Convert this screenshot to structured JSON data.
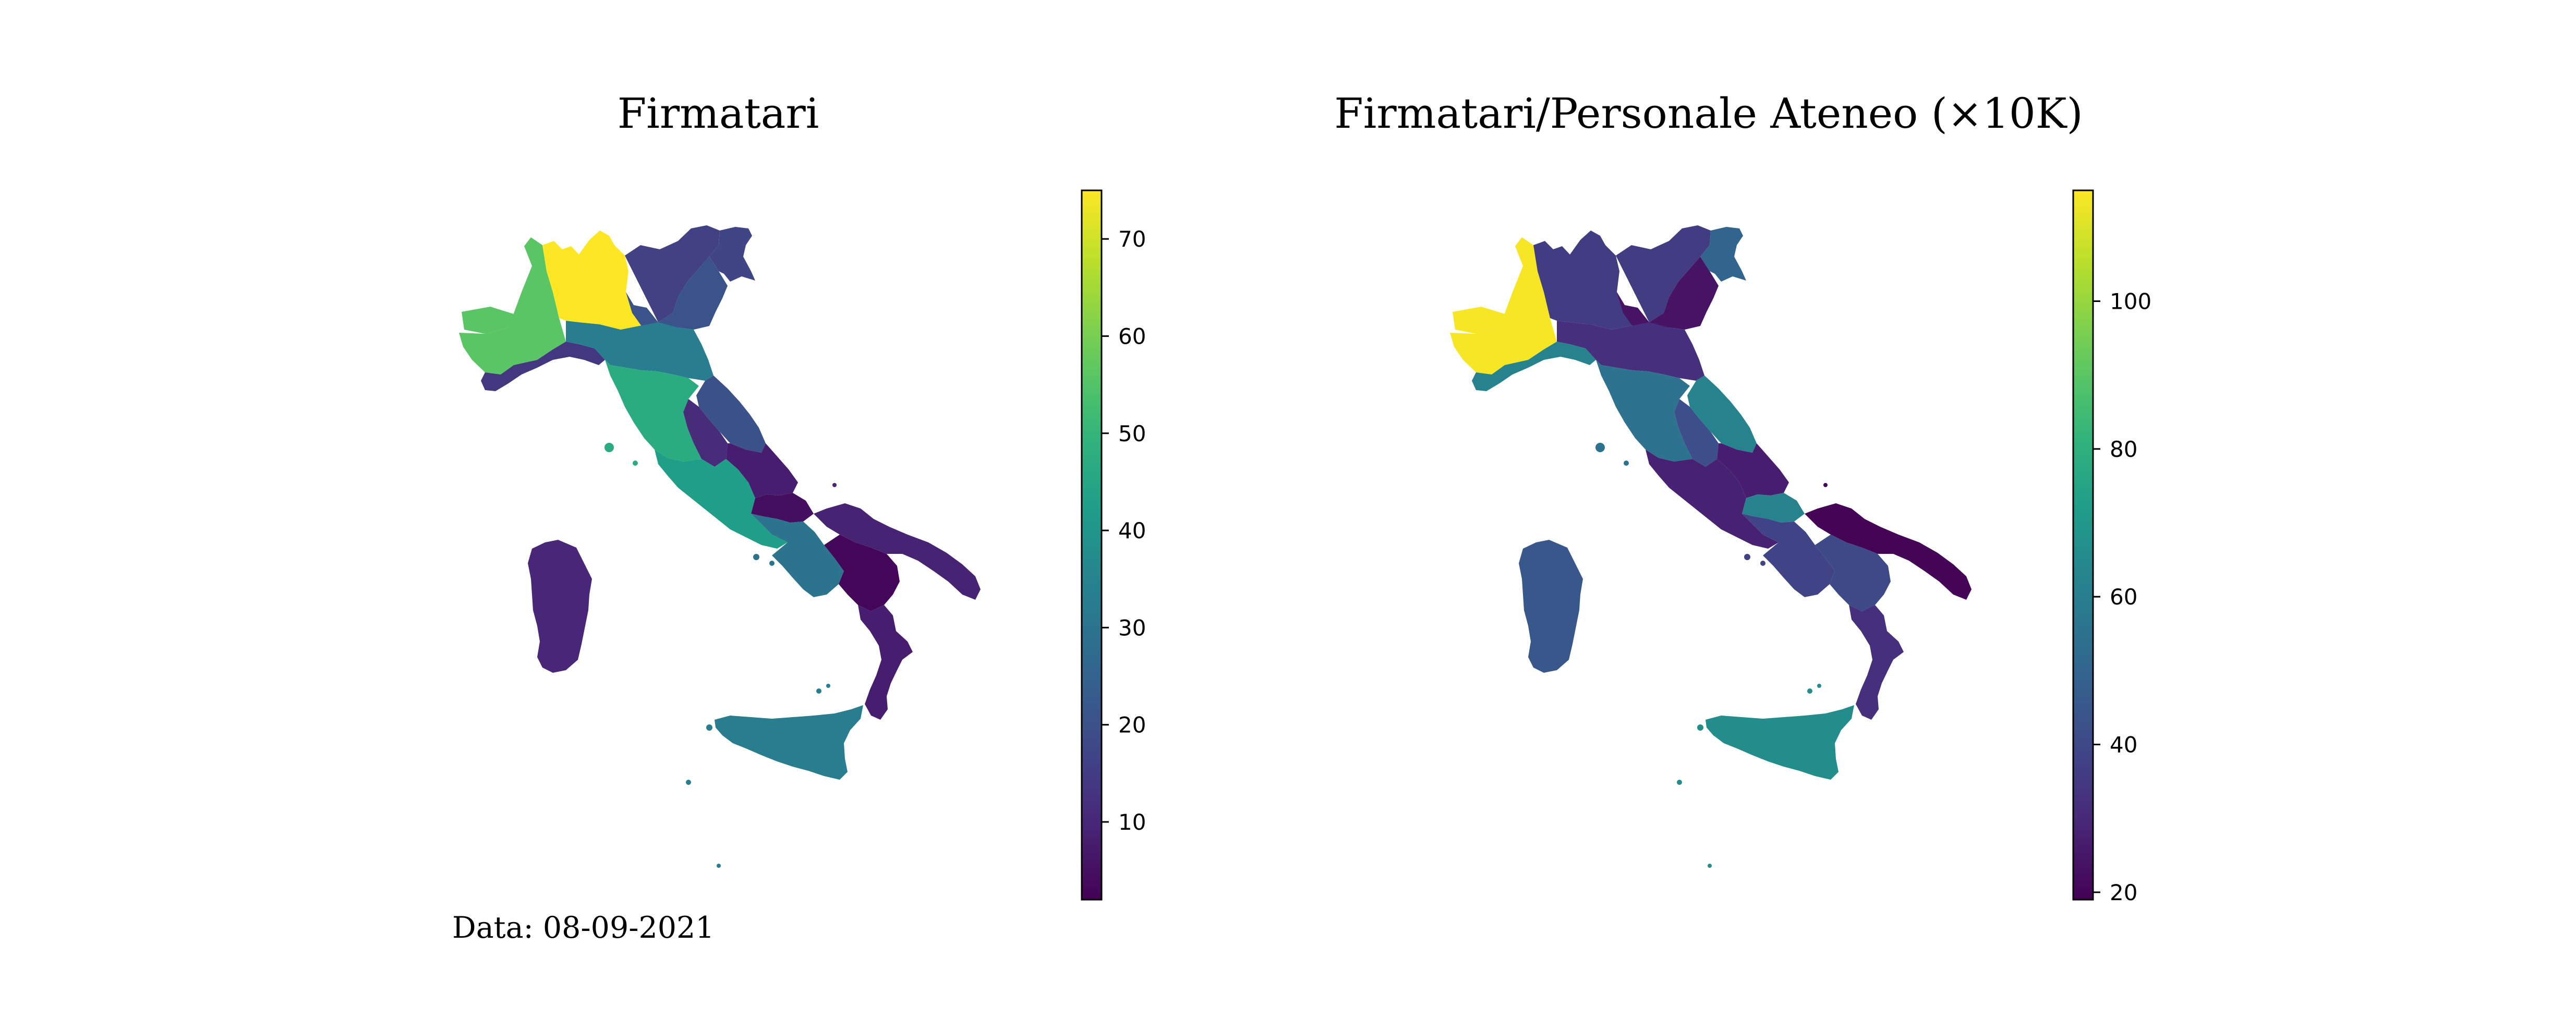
{
  "date_note": "Data: 08-09-2021",
  "chart_data": [
    {
      "type": "choropleth",
      "title": "Firmatari",
      "colormap": "viridis",
      "colorbar_range": [
        2,
        75
      ],
      "colorbar_ticks": [
        10,
        20,
        30,
        40,
        50,
        60,
        70
      ],
      "regions": [
        {
          "name": "Piemonte",
          "value": 56
        },
        {
          "name": "Valle d'Aosta",
          "value": 56
        },
        {
          "name": "Lombardia",
          "value": 75
        },
        {
          "name": "Trentino-Alto Adige",
          "value": 16
        },
        {
          "name": "Veneto",
          "value": 21
        },
        {
          "name": "Friuli-Venezia Giulia",
          "value": 17
        },
        {
          "name": "Liguria",
          "value": 14
        },
        {
          "name": "Emilia-Romagna",
          "value": 33
        },
        {
          "name": "Toscana",
          "value": 47
        },
        {
          "name": "Umbria",
          "value": 11
        },
        {
          "name": "Marche",
          "value": 20
        },
        {
          "name": "Lazio",
          "value": 43
        },
        {
          "name": "Abruzzo",
          "value": 8
        },
        {
          "name": "Molise",
          "value": 5
        },
        {
          "name": "Campania",
          "value": 30
        },
        {
          "name": "Puglia",
          "value": 9
        },
        {
          "name": "Basilicata",
          "value": 3
        },
        {
          "name": "Calabria",
          "value": 8
        },
        {
          "name": "Sicilia",
          "value": 33
        },
        {
          "name": "Sardegna",
          "value": 10
        }
      ]
    },
    {
      "type": "choropleth",
      "title": "Firmatari/Personale Ateneo (×10K)",
      "colormap": "viridis",
      "colorbar_range": [
        19,
        115
      ],
      "colorbar_ticks": [
        20,
        40,
        60,
        80,
        100
      ],
      "regions": [
        {
          "name": "Piemonte",
          "value": 114
        },
        {
          "name": "Valle d'Aosta",
          "value": 114
        },
        {
          "name": "Lombardia",
          "value": 36
        },
        {
          "name": "Trentino-Alto Adige",
          "value": 36
        },
        {
          "name": "Veneto",
          "value": 24
        },
        {
          "name": "Friuli-Venezia Giulia",
          "value": 50
        },
        {
          "name": "Liguria",
          "value": 62
        },
        {
          "name": "Emilia-Romagna",
          "value": 32
        },
        {
          "name": "Toscana",
          "value": 55
        },
        {
          "name": "Umbria",
          "value": 42
        },
        {
          "name": "Marche",
          "value": 62
        },
        {
          "name": "Lazio",
          "value": 28
        },
        {
          "name": "Abruzzo",
          "value": 27
        },
        {
          "name": "Molise",
          "value": 62
        },
        {
          "name": "Campania",
          "value": 38
        },
        {
          "name": "Puglia",
          "value": 20
        },
        {
          "name": "Basilicata",
          "value": 40
        },
        {
          "name": "Calabria",
          "value": 32
        },
        {
          "name": "Sicilia",
          "value": 66
        },
        {
          "name": "Sardegna",
          "value": 45
        }
      ]
    }
  ]
}
